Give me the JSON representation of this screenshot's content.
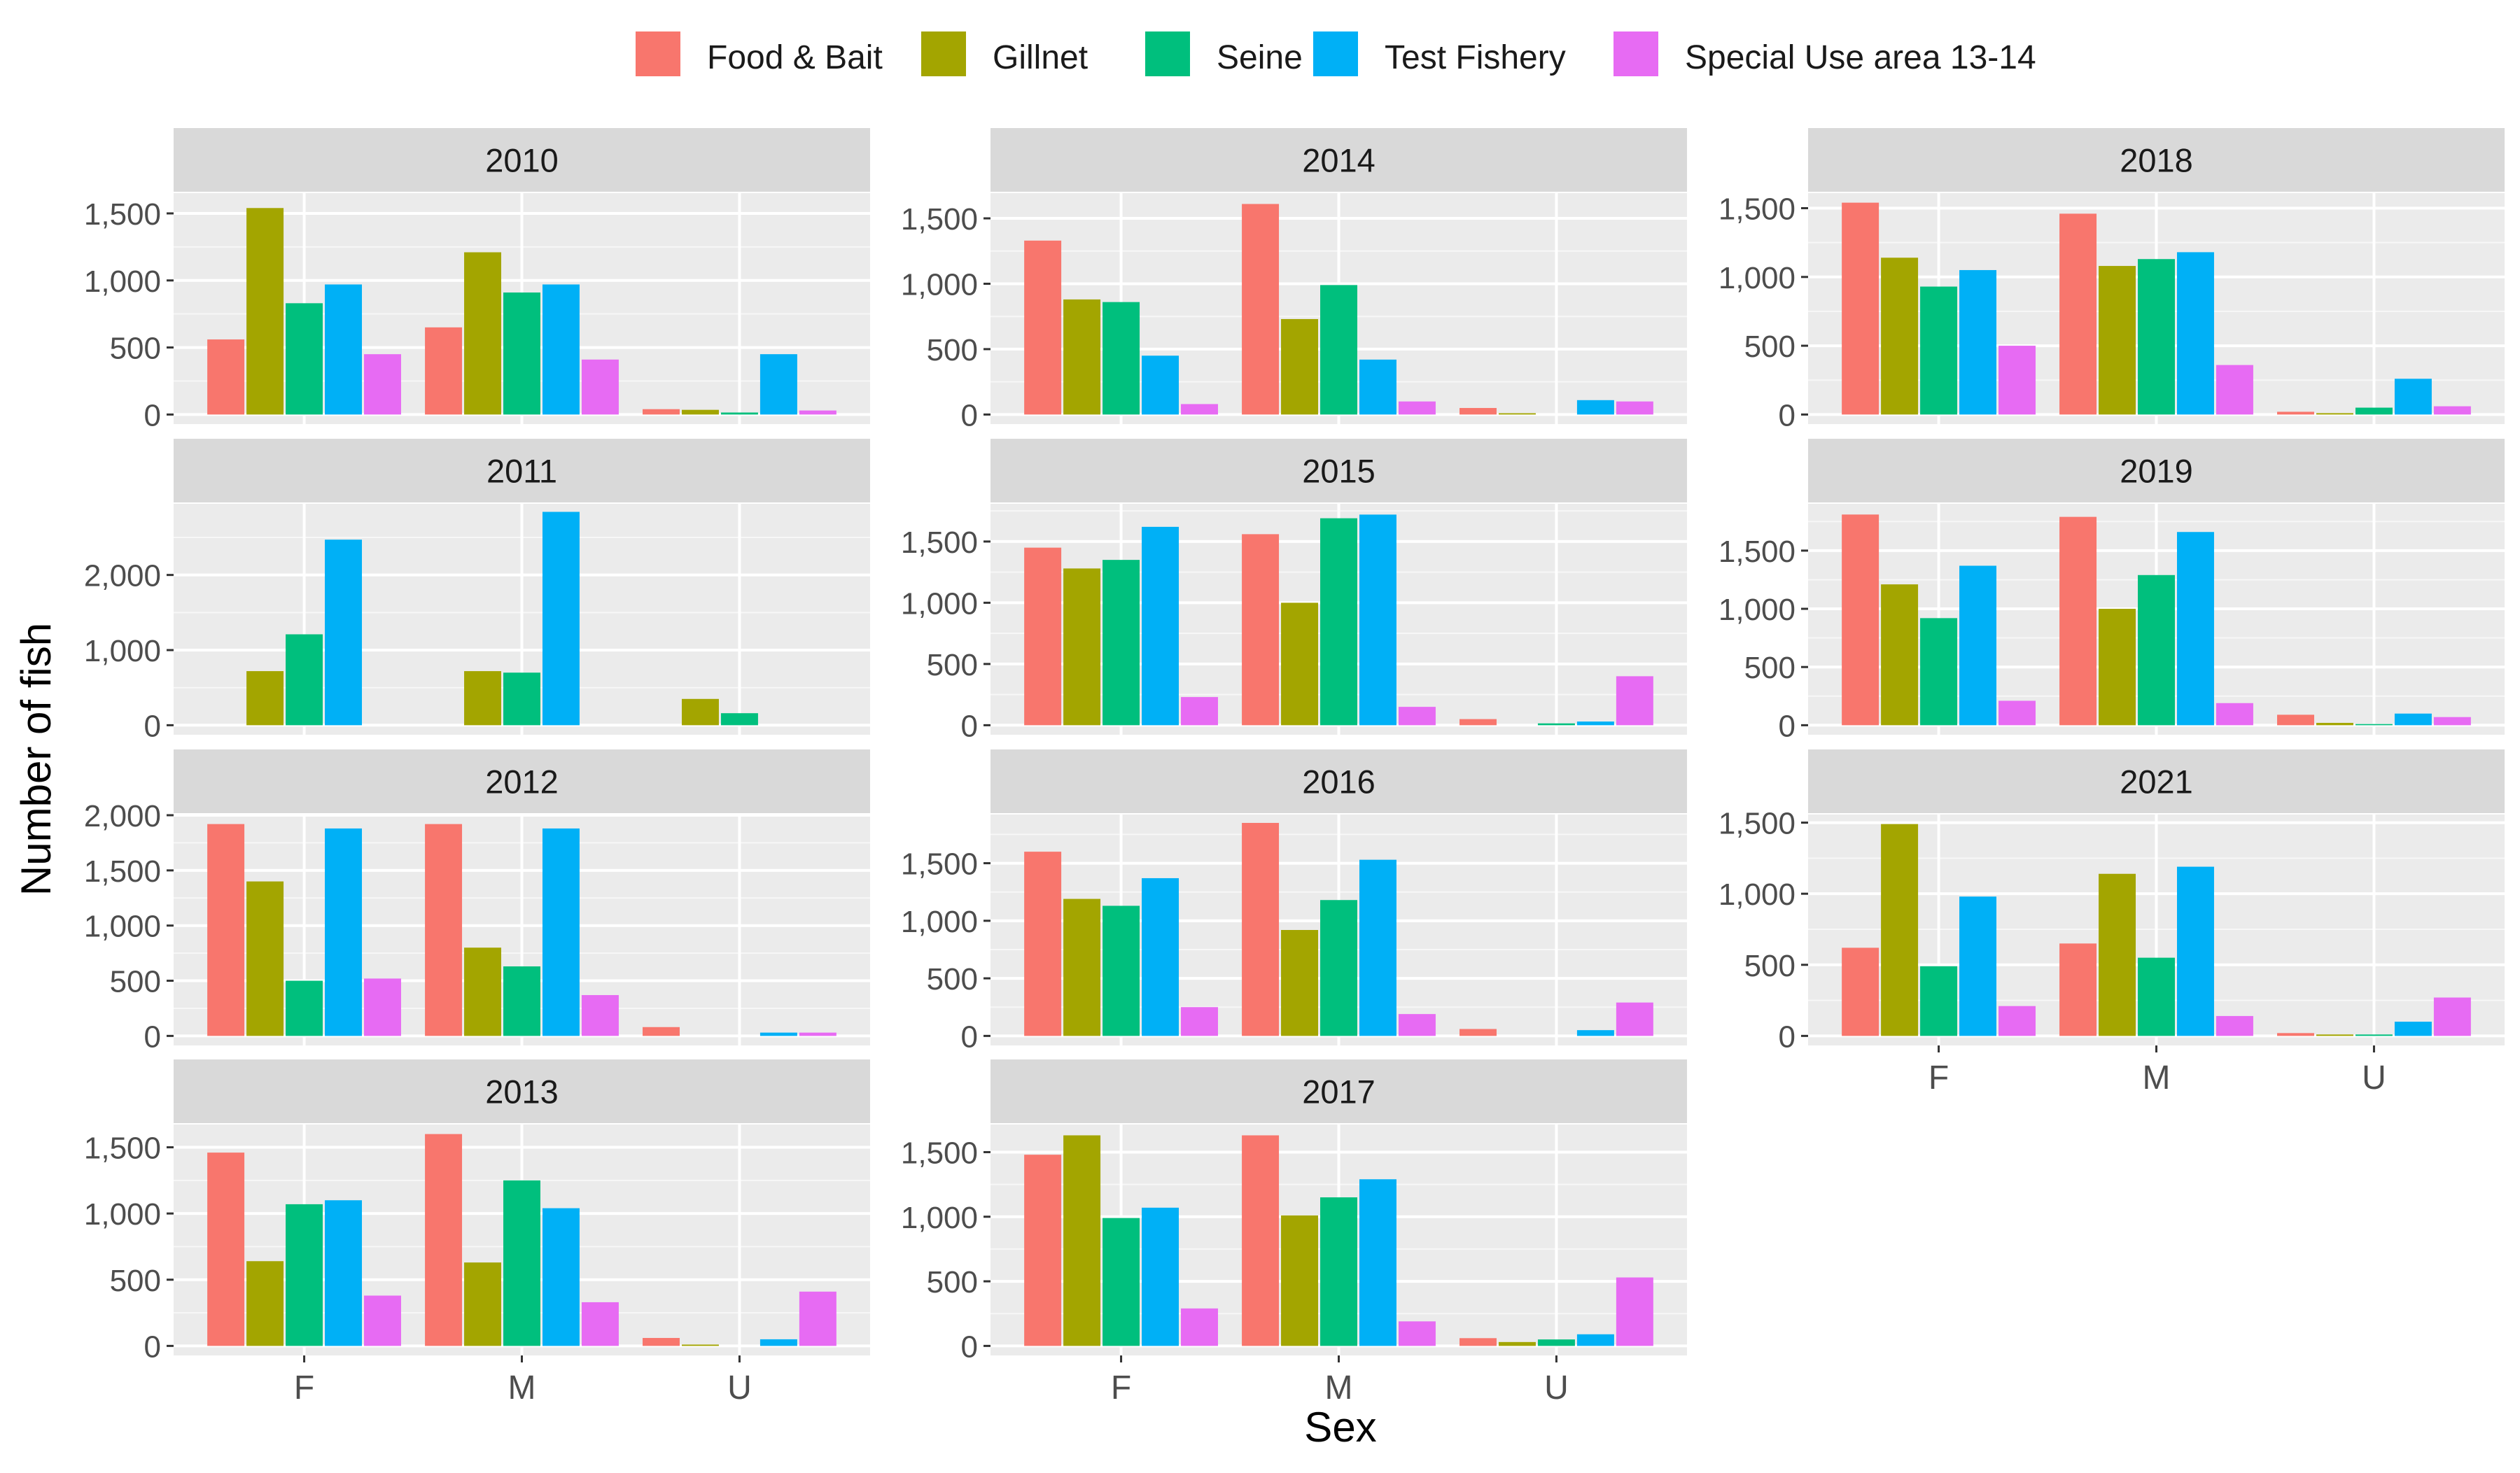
{
  "chart_data": {
    "type": "bar",
    "facet_by": "year",
    "xlabel": "Sex",
    "ylabel": "Number of fish",
    "categories": [
      "F",
      "M",
      "U"
    ],
    "legend": {
      "position": "top",
      "entries": [
        {
          "name": "Food & Bait",
          "color": "#F8766D"
        },
        {
          "name": "Gillnet",
          "color": "#A3A500"
        },
        {
          "name": "Seine",
          "color": "#00BF7D"
        },
        {
          "name": "Test Fishery",
          "color": "#00B0F6"
        },
        {
          "name": "Special Use area 13-14",
          "color": "#E76BF3"
        }
      ]
    },
    "panel_background": "#EBEBEB",
    "strip_background": "#D9D9D9",
    "grid": true,
    "panels": [
      {
        "title": "2010",
        "ylim": [
          0,
          1580
        ],
        "yticks": [
          0,
          500,
          1000,
          1500
        ],
        "ytick_labels": [
          "0",
          "500",
          "1,000",
          "1,500"
        ],
        "values": [
          [
            560,
            1540,
            830,
            970,
            450
          ],
          [
            650,
            1210,
            910,
            970,
            410
          ],
          [
            40,
            35,
            15,
            450,
            30
          ]
        ]
      },
      {
        "title": "2011",
        "ylim": [
          0,
          2820
        ],
        "yticks": [
          0,
          1000,
          2000
        ],
        "ytick_labels": [
          "0",
          "1,000",
          "2,000"
        ],
        "values": [
          [
            null,
            720,
            1210,
            2470,
            null
          ],
          [
            null,
            720,
            700,
            2840,
            null
          ],
          [
            null,
            350,
            160,
            null,
            null
          ]
        ]
      },
      {
        "title": "2012",
        "ylim": [
          0,
          1920
        ],
        "yticks": [
          0,
          500,
          1000,
          1500,
          2000
        ],
        "ytick_labels": [
          "0",
          "500",
          "1,000",
          "1,500",
          "2,000"
        ],
        "values": [
          [
            1920,
            1400,
            500,
            1880,
            520
          ],
          [
            1920,
            800,
            630,
            1880,
            370
          ],
          [
            80,
            null,
            null,
            30,
            30
          ]
        ]
      },
      {
        "title": "2013",
        "ylim": [
          0,
          1600
        ],
        "yticks": [
          0,
          500,
          1000,
          1500
        ],
        "ytick_labels": [
          "0",
          "500",
          "1,000",
          "1,500"
        ],
        "values": [
          [
            1460,
            640,
            1070,
            1100,
            380
          ],
          [
            1600,
            630,
            1250,
            1040,
            330
          ],
          [
            60,
            10,
            null,
            50,
            410
          ]
        ]
      },
      {
        "title": "2014",
        "ylim": [
          0,
          1620
        ],
        "yticks": [
          0,
          500,
          1000,
          1500
        ],
        "ytick_labels": [
          "0",
          "500",
          "1,000",
          "1,500"
        ],
        "values": [
          [
            1330,
            880,
            860,
            450,
            80
          ],
          [
            1610,
            730,
            990,
            420,
            100
          ],
          [
            50,
            10,
            null,
            110,
            100
          ]
        ]
      },
      {
        "title": "2015",
        "ylim": [
          0,
          1730
        ],
        "yticks": [
          0,
          500,
          1000,
          1500
        ],
        "ytick_labels": [
          "0",
          "500",
          "1,000",
          "1,500"
        ],
        "values": [
          [
            1450,
            1280,
            1350,
            1620,
            230
          ],
          [
            1560,
            1000,
            1690,
            1720,
            150
          ],
          [
            50,
            null,
            15,
            30,
            400
          ]
        ]
      },
      {
        "title": "2016",
        "ylim": [
          0,
          1840
        ],
        "yticks": [
          0,
          500,
          1000,
          1500
        ],
        "ytick_labels": [
          "0",
          "500",
          "1,000",
          "1,500"
        ],
        "values": [
          [
            1600,
            1190,
            1130,
            1370,
            250
          ],
          [
            1850,
            920,
            1180,
            1530,
            190
          ],
          [
            60,
            null,
            null,
            50,
            290
          ]
        ]
      },
      {
        "title": "2017",
        "ylim": [
          0,
          1640
        ],
        "yticks": [
          0,
          500,
          1000,
          1500
        ],
        "ytick_labels": [
          "0",
          "500",
          "1,000",
          "1,500"
        ],
        "values": [
          [
            1480,
            1630,
            990,
            1070,
            290
          ],
          [
            1630,
            1010,
            1150,
            1290,
            190
          ],
          [
            60,
            30,
            50,
            90,
            530
          ]
        ]
      },
      {
        "title": "2018",
        "ylim": [
          0,
          1540
        ],
        "yticks": [
          0,
          500,
          1000,
          1500
        ],
        "ytick_labels": [
          "0",
          "500",
          "1,000",
          "1,500"
        ],
        "values": [
          [
            1540,
            1140,
            930,
            1050,
            500
          ],
          [
            1460,
            1080,
            1130,
            1180,
            360
          ],
          [
            20,
            10,
            50,
            260,
            60
          ]
        ]
      },
      {
        "title": "2019",
        "ylim": [
          0,
          1820
        ],
        "yticks": [
          0,
          500,
          1000,
          1500
        ],
        "ytick_labels": [
          "0",
          "500",
          "1,000",
          "1,500"
        ],
        "values": [
          [
            1810,
            1210,
            920,
            1370,
            210
          ],
          [
            1790,
            1000,
            1290,
            1660,
            190
          ],
          [
            90,
            20,
            10,
            100,
            70
          ]
        ]
      },
      {
        "title": "2021",
        "ylim": [
          0,
          1490
        ],
        "yticks": [
          0,
          500,
          1000,
          1500
        ],
        "ytick_labels": [
          "0",
          "500",
          "1,000",
          "1,500"
        ],
        "values": [
          [
            620,
            1490,
            490,
            980,
            210
          ],
          [
            650,
            1140,
            550,
            1190,
            140
          ],
          [
            20,
            10,
            10,
            100,
            270
          ]
        ]
      }
    ]
  }
}
